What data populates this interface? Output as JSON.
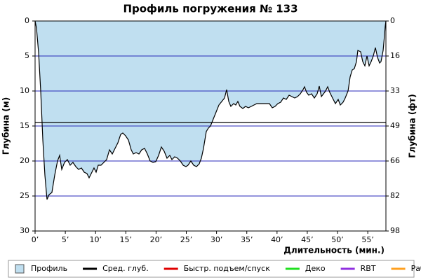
{
  "chart_data": {
    "type": "area",
    "title": "Профиль погружения № 133",
    "x_label": "Длительность (мин.)",
    "y_label": "Глубина (м)",
    "y2_label": "Глубина (фт)",
    "xlim": [
      0,
      58
    ],
    "ylim": [
      0,
      30
    ],
    "y_inverted": true,
    "y2lim": [
      0,
      98.4
    ],
    "xticks": [
      {
        "value": 0,
        "label": "0’"
      },
      {
        "value": 5,
        "label": "5’"
      },
      {
        "value": 10,
        "label": "10’"
      },
      {
        "value": 15,
        "label": "15’"
      },
      {
        "value": 20,
        "label": "20’"
      },
      {
        "value": 25,
        "label": "25’"
      },
      {
        "value": 30,
        "label": "30’"
      },
      {
        "value": 35,
        "label": "35’"
      },
      {
        "value": 40,
        "label": "40’"
      },
      {
        "value": 45,
        "label": "45’"
      },
      {
        "value": 50,
        "label": "50’"
      },
      {
        "value": 55,
        "label": "55’"
      }
    ],
    "yticks": [
      0,
      5,
      10,
      15,
      20,
      25,
      30
    ],
    "y2ticks": [
      0,
      {
        "value": 16.4,
        "label": "16"
      },
      {
        "value": 32.8,
        "label": "33"
      },
      {
        "value": 49.2,
        "label": "49"
      },
      {
        "value": 65.6,
        "label": "66"
      },
      {
        "value": 82.0,
        "label": "82"
      },
      {
        "value": 98.4,
        "label": "98"
      }
    ],
    "grid": true,
    "grid_color": "#2828b8",
    "x": [
      0,
      0.23,
      0.58,
      0.93,
      1.28,
      1.62,
      1.97,
      2.32,
      2.78,
      3.25,
      3.71,
      4.06,
      4.41,
      4.87,
      5.34,
      5.8,
      6.26,
      6.73,
      7.19,
      7.66,
      8.12,
      8.58,
      8.93,
      9.28,
      9.74,
      10.09,
      10.44,
      10.9,
      11.37,
      11.83,
      12.3,
      12.76,
      13.22,
      13.69,
      14.15,
      14.5,
      14.96,
      15.43,
      15.89,
      16.24,
      16.7,
      17.17,
      17.63,
      18.1,
      18.56,
      19.02,
      19.49,
      19.95,
      20.42,
      20.88,
      21.34,
      21.81,
      22.27,
      22.62,
      23.08,
      23.55,
      24.01,
      24.48,
      24.94,
      25.29,
      25.75,
      26.22,
      26.68,
      27.14,
      27.49,
      27.84,
      28.3,
      28.65,
      29,
      29.46,
      29.93,
      30.39,
      30.86,
      31.32,
      31.67,
      32.02,
      32.36,
      32.83,
      33.18,
      33.52,
      33.87,
      34.34,
      34.8,
      35.26,
      35.73,
      36.19,
      36.66,
      37.12,
      37.7,
      38.28,
      38.74,
      39.21,
      39.67,
      40.14,
      40.6,
      41.06,
      41.53,
      41.99,
      42.46,
      42.92,
      43.38,
      43.85,
      44.31,
      44.54,
      44.89,
      45.24,
      45.7,
      46.17,
      46.63,
      46.98,
      47.33,
      47.68,
      48.02,
      48.37,
      48.72,
      49.18,
      49.65,
      50.11,
      50.46,
      50.92,
      51.27,
      51.74,
      52.08,
      52.43,
      52.78,
      53.13,
      53.36,
      53.82,
      54.17,
      54.52,
      54.87,
      55.22,
      55.56,
      55.91,
      56.26,
      56.61,
      56.96,
      57.19,
      57.54,
      57.77,
      57.88,
      58
    ],
    "series": [
      {
        "name": "Профиль",
        "color": "#c0dff0",
        "line_color": "#000000",
        "values": [
          0,
          1,
          4.5,
          10,
          17,
          22,
          25.5,
          24.8,
          24.5,
          22,
          20,
          19.2,
          21.2,
          20.2,
          19.8,
          20.6,
          20.2,
          20.8,
          21.2,
          21,
          21.6,
          21.8,
          22.4,
          21.8,
          21,
          21.6,
          20.6,
          20.6,
          20.2,
          19.8,
          18.4,
          19,
          18.2,
          17.4,
          16.2,
          16,
          16.4,
          17,
          18.4,
          19,
          18.8,
          19,
          18.4,
          18.2,
          19,
          20,
          20.2,
          20.1,
          19.2,
          18,
          18.6,
          19.6,
          19.2,
          19.8,
          19.4,
          19.6,
          20,
          20.6,
          20.8,
          20.6,
          20,
          20.6,
          20.8,
          20.4,
          19.6,
          18.2,
          15.8,
          15.3,
          15,
          14,
          13,
          12,
          11.5,
          11,
          9.8,
          11.5,
          12.2,
          11.8,
          12,
          11.5,
          12.2,
          12.5,
          12.2,
          12.4,
          12.2,
          12,
          11.8,
          11.8,
          11.8,
          11.8,
          11.8,
          12.4,
          12.2,
          11.8,
          11.6,
          11,
          11.2,
          10.6,
          10.8,
          11,
          10.8,
          10.4,
          9.8,
          9.4,
          10.2,
          10.6,
          10.4,
          11,
          10.4,
          9.3,
          10.8,
          10.4,
          10,
          9.4,
          10.2,
          11,
          11.8,
          11.2,
          12,
          11.6,
          11,
          10,
          8,
          7,
          6.8,
          5.8,
          4.2,
          4.4,
          5.8,
          6.4,
          5,
          6.4,
          5.8,
          5,
          3.8,
          5.2,
          6,
          5.8,
          4.2,
          2,
          0.8,
          0
        ]
      }
    ],
    "avg_depth": {
      "name": "Сред. глуб.",
      "value": 14.5,
      "color": "#000000"
    },
    "legend_extra": [
      {
        "name": "Быстр. подъем/спуск",
        "color": "#e00000"
      },
      {
        "name": "Деко",
        "color": "#20e020"
      },
      {
        "name": "RBT",
        "color": "#9030e0"
      },
      {
        "name": "Раб.",
        "color": "#ffa020"
      }
    ]
  }
}
